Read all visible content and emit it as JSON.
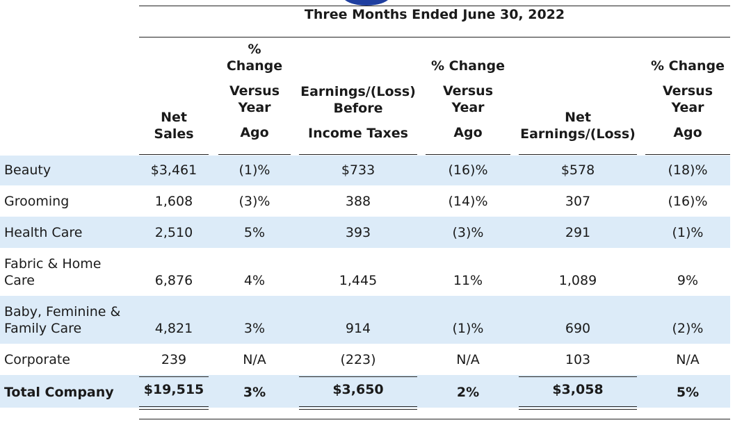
{
  "period_title": "Three Months Ended June 30, 2022",
  "columns": [
    {
      "key": "net_sales",
      "header": [
        "Net",
        "Sales"
      ]
    },
    {
      "key": "net_sales_change",
      "header": [
        "%",
        "Change",
        "Versus",
        "Year",
        "Ago"
      ]
    },
    {
      "key": "ebit",
      "header": [
        "Earnings/(Loss)",
        "Before",
        "Income Taxes"
      ]
    },
    {
      "key": "ebit_change",
      "header": [
        "% Change",
        "Versus",
        "Year",
        "Ago"
      ]
    },
    {
      "key": "net_earnings",
      "header": [
        "Net",
        "Earnings/(Loss)"
      ]
    },
    {
      "key": "net_earnings_change",
      "header": [
        "% Change",
        "Versus",
        "Year",
        "Ago"
      ]
    }
  ],
  "rows": [
    {
      "segment": "Beauty",
      "values": [
        "$3,461",
        "(1)%",
        "$733",
        "(16)%",
        "$578",
        "(18)%"
      ]
    },
    {
      "segment": "Grooming",
      "values": [
        "1,608",
        "(3)%",
        "388",
        "(14)%",
        "307",
        "(16)%"
      ]
    },
    {
      "segment": "Health Care",
      "values": [
        "2,510",
        "5%",
        "393",
        "(3)%",
        "291",
        "(1)%"
      ]
    },
    {
      "segment": "Fabric & Home Care",
      "values": [
        "6,876",
        "4%",
        "1,445",
        "11%",
        "1,089",
        "9%"
      ]
    },
    {
      "segment": "Baby, Feminine & Family Care",
      "values": [
        "4,821",
        "3%",
        "914",
        "(1)%",
        "690",
        "(2)%"
      ]
    },
    {
      "segment": "Corporate",
      "values": [
        "239",
        "N/A",
        "(223)",
        "N/A",
        "103",
        "N/A"
      ]
    },
    {
      "segment": "Total Company",
      "values": [
        "$19,515",
        "3%",
        "$3,650",
        "2%",
        "$3,058",
        "5%"
      ]
    }
  ],
  "colors": {
    "row_shade": "#dcebf8",
    "logo": "#1f3fa0"
  }
}
